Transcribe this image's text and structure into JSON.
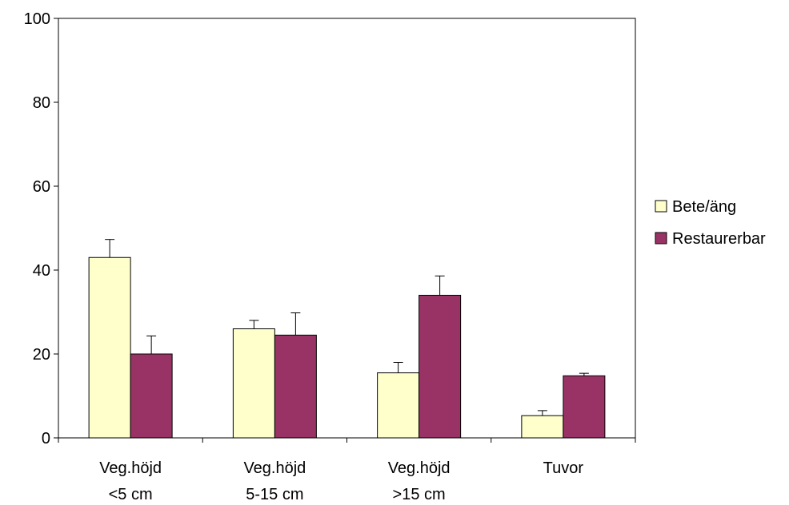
{
  "chart_data": {
    "type": "bar",
    "title": "",
    "xlabel": "",
    "ylabel": "",
    "ylim": [
      0,
      100
    ],
    "yticks": [
      0,
      20,
      40,
      60,
      80,
      100
    ],
    "categories": [
      [
        "Veg.höjd",
        "<5 cm"
      ],
      [
        "Veg.höjd",
        "5-15 cm"
      ],
      [
        "Veg.höjd",
        ">15 cm"
      ],
      [
        "Tuvor"
      ]
    ],
    "series": [
      {
        "name": "Bete/äng",
        "color": "#FFFFCC",
        "values": [
          43,
          26,
          15.5,
          5.3
        ],
        "error": [
          4.3,
          2.0,
          2.5,
          1.2
        ]
      },
      {
        "name": "Restaurerbar",
        "color": "#993366",
        "values": [
          20,
          24.5,
          34,
          14.8
        ],
        "error": [
          4.3,
          5.3,
          4.6,
          0.6
        ]
      }
    ],
    "grid": false,
    "legend": "right",
    "error_bars": true
  }
}
